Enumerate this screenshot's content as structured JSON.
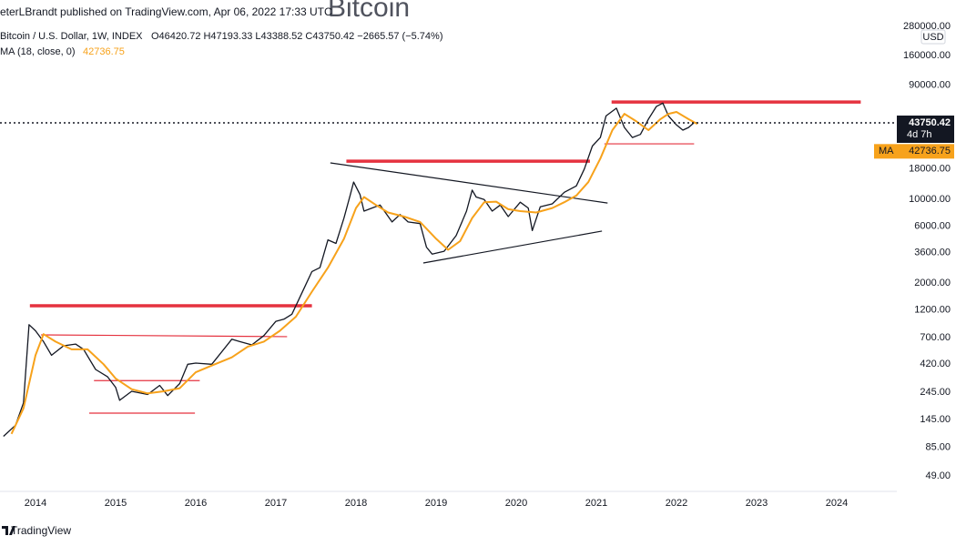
{
  "chart_data": {
    "type": "line",
    "watermark": "Bitcoin",
    "header": "eterLBrandt published on TradingView.com, Apr 06, 2022 17:33 UTC",
    "legend_ohlc": "O46420.72 H47193.33 L43388.52 C43750.42 −2665.57 (−5.74%)",
    "currency": "USD",
    "countdown": "4d 7h",
    "ma_tag": "MA",
    "footer": "TradingView",
    "log_scale": true,
    "grid": false,
    "xlim": [
      2013.557,
      2024.75
    ],
    "xticks": [
      2014,
      2015,
      2016,
      2017,
      2018,
      2019,
      2020,
      2021,
      2022,
      2023,
      2024
    ],
    "ylim": [
      36.4,
      465000
    ],
    "yticks": [
      {
        "value": 49,
        "label": "49.00"
      },
      {
        "value": 85,
        "label": "85.00"
      },
      {
        "value": 145,
        "label": "145.00"
      },
      {
        "value": 245,
        "label": "245.00"
      },
      {
        "value": 420,
        "label": "420.00"
      },
      {
        "value": 700,
        "label": "700.00"
      },
      {
        "value": 1200,
        "label": "1200.00"
      },
      {
        "value": 2000,
        "label": "2000.00"
      },
      {
        "value": 3600,
        "label": "3600.00"
      },
      {
        "value": 6000,
        "label": "6000.00"
      },
      {
        "value": 10000,
        "label": "10000.00"
      },
      {
        "value": 18000,
        "label": "18000.00"
      },
      {
        "value": 90000,
        "label": "90000.00"
      },
      {
        "value": 160000,
        "label": "160000.00"
      },
      {
        "value": 280000,
        "label": "280000.00"
      }
    ],
    "series": [
      {
        "name": "Bitcoin / U.S. Dollar, 1W, INDEX",
        "color": "#131722",
        "x": [
          2013.6,
          2013.75,
          2013.85,
          2013.92,
          2014.0,
          2014.1,
          2014.2,
          2014.35,
          2014.5,
          2014.6,
          2014.75,
          2014.9,
          2015.0,
          2015.05,
          2015.2,
          2015.4,
          2015.55,
          2015.65,
          2015.8,
          2015.9,
          2016.0,
          2016.2,
          2016.45,
          2016.55,
          2016.7,
          2016.85,
          2017.0,
          2017.1,
          2017.2,
          2017.35,
          2017.45,
          2017.55,
          2017.65,
          2017.75,
          2017.85,
          2017.93,
          2017.97,
          2018.05,
          2018.1,
          2018.2,
          2018.3,
          2018.45,
          2018.55,
          2018.65,
          2018.8,
          2018.88,
          2018.95,
          2019.1,
          2019.25,
          2019.38,
          2019.45,
          2019.5,
          2019.6,
          2019.7,
          2019.8,
          2019.9,
          2020.05,
          2020.15,
          2020.2,
          2020.3,
          2020.45,
          2020.6,
          2020.75,
          2020.85,
          2020.95,
          2021.05,
          2021.12,
          2021.25,
          2021.35,
          2021.45,
          2021.55,
          2021.65,
          2021.75,
          2021.83,
          2021.9,
          2022.0,
          2022.08,
          2022.15,
          2022.22,
          2022.26
        ],
        "values": [
          105,
          130,
          200,
          900,
          800,
          650,
          500,
          600,
          620,
          560,
          380,
          330,
          270,
          210,
          250,
          235,
          280,
          230,
          290,
          420,
          430,
          420,
          680,
          650,
          610,
          730,
          960,
          1000,
          1100,
          1800,
          2500,
          2700,
          4600,
          4300,
          7000,
          11000,
          14000,
          11000,
          8000,
          8500,
          9000,
          6500,
          7500,
          6500,
          6300,
          4000,
          3500,
          3700,
          5000,
          8000,
          12000,
          10500,
          10000,
          8000,
          9000,
          7200,
          9500,
          8500,
          5500,
          8700,
          9200,
          11500,
          13000,
          18000,
          28000,
          33000,
          50000,
          58000,
          40000,
          33000,
          35000,
          47000,
          60000,
          64000,
          50000,
          42000,
          38000,
          40000,
          44000,
          43750.42
        ]
      },
      {
        "name": "MA (18, close, 0)",
        "color": "#f7a21b",
        "x": [
          2013.7,
          2013.85,
          2014.0,
          2014.1,
          2014.25,
          2014.45,
          2014.65,
          2014.85,
          2015.0,
          2015.2,
          2015.4,
          2015.6,
          2015.8,
          2016.0,
          2016.2,
          2016.45,
          2016.65,
          2016.85,
          2017.05,
          2017.25,
          2017.45,
          2017.65,
          2017.85,
          2018.0,
          2018.1,
          2018.25,
          2018.4,
          2018.6,
          2018.8,
          2019.0,
          2019.15,
          2019.3,
          2019.45,
          2019.6,
          2019.75,
          2019.9,
          2020.05,
          2020.25,
          2020.45,
          2020.6,
          2020.75,
          2020.9,
          2021.05,
          2021.2,
          2021.35,
          2021.5,
          2021.65,
          2021.8,
          2021.9,
          2022.0,
          2022.15,
          2022.26
        ],
        "values": [
          110,
          180,
          500,
          750,
          650,
          560,
          560,
          420,
          320,
          260,
          240,
          250,
          265,
          360,
          410,
          480,
          590,
          650,
          800,
          1050,
          1700,
          2700,
          4700,
          8500,
          10500,
          9000,
          7800,
          7200,
          6500,
          4700,
          3800,
          4500,
          7000,
          9500,
          9600,
          8300,
          8000,
          7800,
          8500,
          9500,
          10800,
          14000,
          22000,
          38000,
          52000,
          45000,
          38000,
          47000,
          52000,
          54000,
          47000,
          42736.75
        ]
      }
    ],
    "drawings": [
      {
        "color": "#e5323f",
        "style": "thick",
        "x": [
          2013.93,
          2017.45
        ],
        "y": [
          1295,
          1295
        ]
      },
      {
        "color": "#e5323f",
        "style": "thin",
        "x": [
          2014.07,
          2017.14
        ],
        "y": [
          740,
          715
        ]
      },
      {
        "color": "#e5323f",
        "style": "thin",
        "x": [
          2014.73,
          2016.05
        ],
        "y": [
          307,
          307
        ]
      },
      {
        "color": "#e5323f",
        "style": "thin",
        "x": [
          2014.67,
          2015.99
        ],
        "y": [
          164,
          164
        ]
      },
      {
        "color": "#e5323f",
        "style": "thick",
        "x": [
          2017.88,
          2020.92
        ],
        "y": [
          20900,
          20900
        ]
      },
      {
        "color": "#131722",
        "style": "thin",
        "x": [
          2017.68,
          2021.14
        ],
        "y": [
          20250,
          9350
        ]
      },
      {
        "color": "#131722",
        "style": "thin",
        "x": [
          2018.84,
          2021.07
        ],
        "y": [
          2950,
          5450
        ]
      },
      {
        "color": "#e5323f",
        "style": "thick",
        "x": [
          2021.19,
          2024.3
        ],
        "y": [
          65300,
          65300
        ]
      },
      {
        "color": "#e5323f",
        "style": "thin",
        "x": [
          2021.1,
          2022.22
        ],
        "y": [
          29200,
          29200
        ]
      }
    ]
  }
}
